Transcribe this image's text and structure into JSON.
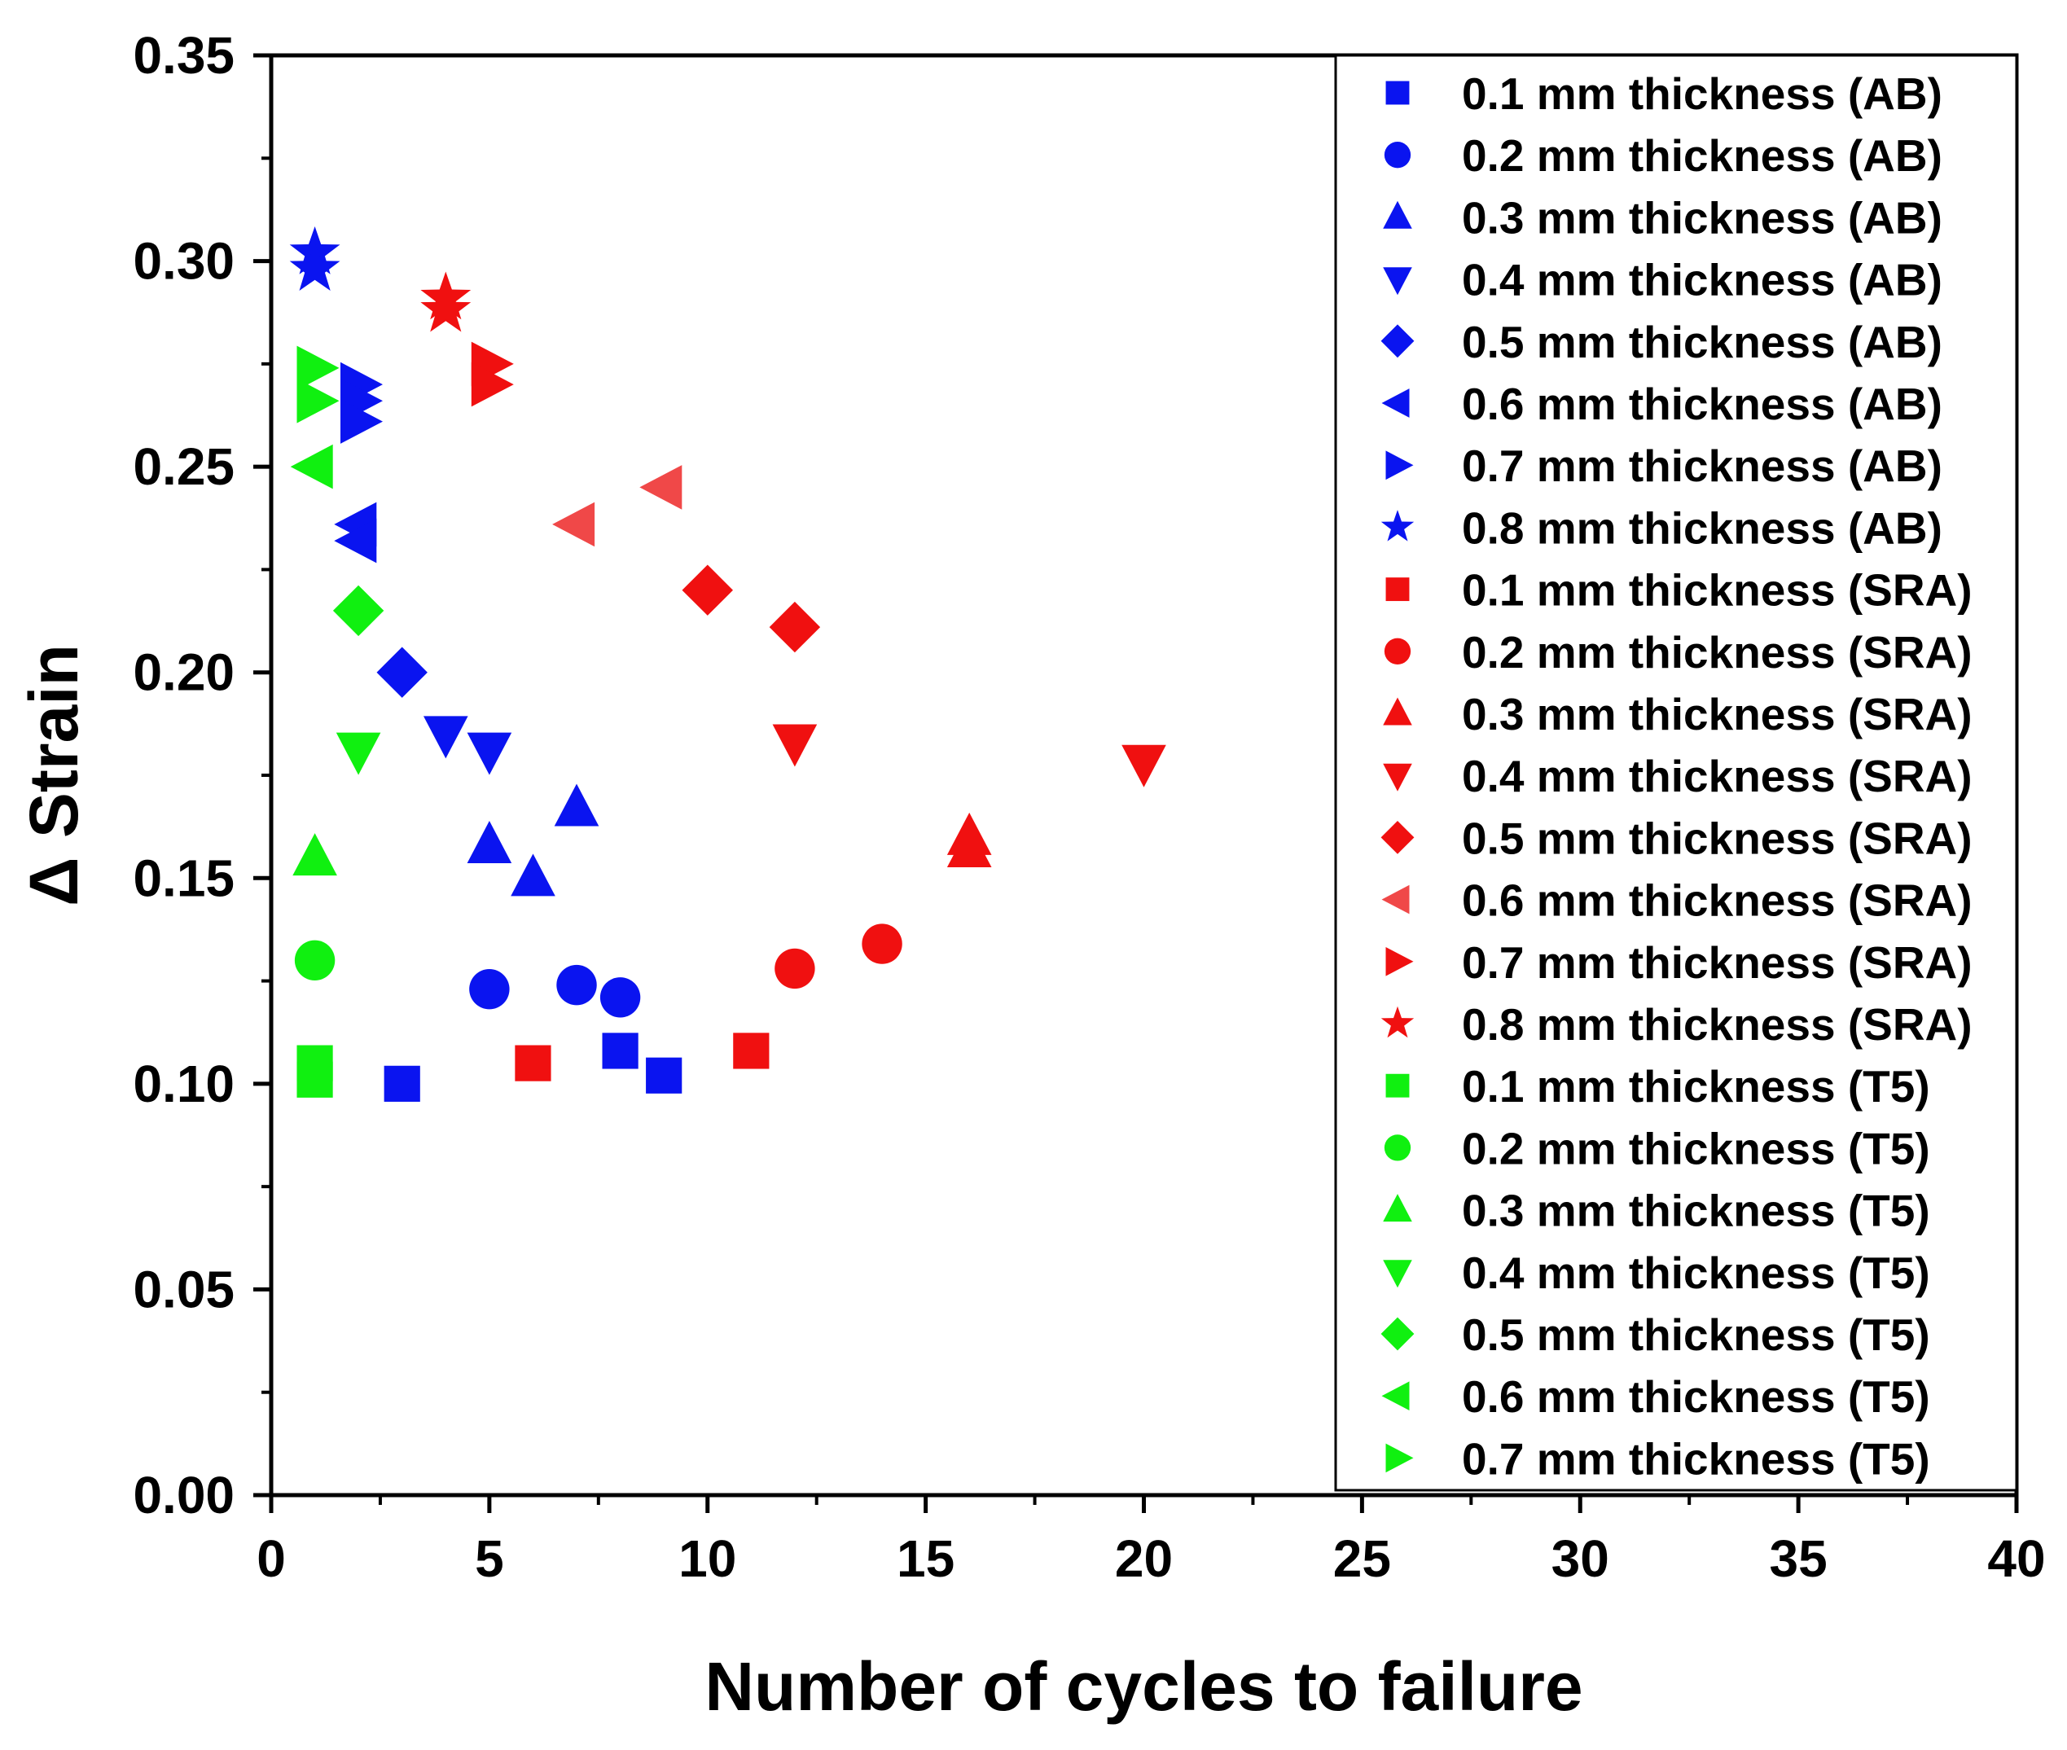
{
  "chart_data": {
    "type": "scatter",
    "xlabel": "Number of cycles to failure",
    "ylabel": "Δ Strain",
    "xlim": [
      0,
      40
    ],
    "ylim": [
      0,
      0.35
    ],
    "x_ticks": [
      "0",
      "5",
      "10",
      "15",
      "20",
      "25",
      "30",
      "35",
      "40"
    ],
    "y_ticks": [
      "0.00",
      "0.05",
      "0.10",
      "0.15",
      "0.20",
      "0.25",
      "0.30",
      "0.35"
    ],
    "legend_position": "top-right",
    "grid": false,
    "colors": {
      "AB": "#0a14f0",
      "SRA": "#f01010",
      "SRA_light": "#f04848",
      "T5": "#10f010"
    },
    "series": [
      {
        "name": "0.1 mm thickness (AB)",
        "group": "AB",
        "marker": "square",
        "color": "#0a14f0",
        "points": [
          [
            3,
            0.1
          ],
          [
            8,
            0.108
          ],
          [
            9,
            0.102
          ]
        ]
      },
      {
        "name": "0.2 mm thickness (AB)",
        "group": "AB",
        "marker": "circle",
        "color": "#0a14f0",
        "points": [
          [
            5,
            0.123
          ],
          [
            7,
            0.124
          ],
          [
            8,
            0.121
          ]
        ]
      },
      {
        "name": "0.3 mm thickness (AB)",
        "group": "AB",
        "marker": "triangle-up",
        "color": "#0a14f0",
        "points": [
          [
            5,
            0.158
          ],
          [
            6,
            0.15
          ],
          [
            7,
            0.167
          ]
        ]
      },
      {
        "name": "0.4 mm thickness (AB)",
        "group": "AB",
        "marker": "triangle-down",
        "color": "#0a14f0",
        "points": [
          [
            4,
            0.185
          ],
          [
            5,
            0.181
          ]
        ]
      },
      {
        "name": "0.5 mm thickness (AB)",
        "group": "AB",
        "marker": "diamond",
        "color": "#0a14f0",
        "points": [
          [
            3,
            0.2
          ]
        ]
      },
      {
        "name": "0.6 mm thickness (AB)",
        "group": "AB",
        "marker": "triangle-left",
        "color": "#0a14f0",
        "points": [
          [
            2,
            0.236
          ],
          [
            2,
            0.232
          ]
        ]
      },
      {
        "name": "0.7 mm thickness (AB)",
        "group": "AB",
        "marker": "triangle-right",
        "color": "#0a14f0",
        "points": [
          [
            2,
            0.27
          ],
          [
            2,
            0.266
          ],
          [
            2,
            0.261
          ]
        ]
      },
      {
        "name": "0.8 mm thickness (AB)",
        "group": "AB",
        "marker": "star",
        "color": "#0a14f0",
        "points": [
          [
            1,
            0.302
          ],
          [
            1,
            0.298
          ]
        ]
      },
      {
        "name": "0.1 mm thickness (SRA)",
        "group": "SRA",
        "marker": "square",
        "color": "#f01010",
        "points": [
          [
            6,
            0.105
          ],
          [
            11,
            0.108
          ]
        ]
      },
      {
        "name": "0.2 mm thickness (SRA)",
        "group": "SRA",
        "marker": "circle",
        "color": "#f01010",
        "points": [
          [
            12,
            0.128
          ],
          [
            14,
            0.134
          ]
        ]
      },
      {
        "name": "0.3 mm thickness (SRA)",
        "group": "SRA",
        "marker": "triangle-up",
        "color": "#f01010",
        "points": [
          [
            16,
            0.16
          ],
          [
            16,
            0.157
          ]
        ]
      },
      {
        "name": "0.4 mm thickness (SRA)",
        "group": "SRA",
        "marker": "triangle-down",
        "color": "#f01010",
        "points": [
          [
            12,
            0.183
          ],
          [
            20,
            0.178
          ]
        ]
      },
      {
        "name": "0.5 mm thickness (SRA)",
        "group": "SRA",
        "marker": "diamond",
        "color": "#f01010",
        "points": [
          [
            10,
            0.22
          ],
          [
            12,
            0.211
          ]
        ]
      },
      {
        "name": "0.6 mm thickness (SRA)",
        "group": "SRA",
        "marker": "triangle-left",
        "color": "#f04848",
        "points": [
          [
            7,
            0.236
          ],
          [
            9,
            0.245
          ]
        ]
      },
      {
        "name": "0.7 mm thickness (SRA)",
        "group": "SRA",
        "marker": "triangle-right",
        "color": "#f01010",
        "points": [
          [
            5,
            0.275
          ],
          [
            5,
            0.27
          ]
        ]
      },
      {
        "name": "0.8 mm thickness (SRA)",
        "group": "SRA",
        "marker": "star",
        "color": "#f01010",
        "points": [
          [
            4,
            0.291
          ],
          [
            4,
            0.288
          ]
        ]
      },
      {
        "name": "0.1 mm thickness (T5)",
        "group": "T5",
        "marker": "square",
        "color": "#10f010",
        "points": [
          [
            1,
            0.105
          ],
          [
            1,
            0.101
          ]
        ]
      },
      {
        "name": "0.2 mm thickness (T5)",
        "group": "T5",
        "marker": "circle",
        "color": "#10f010",
        "points": [
          [
            1,
            0.13
          ]
        ]
      },
      {
        "name": "0.3 mm thickness (T5)",
        "group": "T5",
        "marker": "triangle-up",
        "color": "#10f010",
        "points": [
          [
            1,
            0.155
          ]
        ]
      },
      {
        "name": "0.4 mm thickness (T5)",
        "group": "T5",
        "marker": "triangle-down",
        "color": "#10f010",
        "points": [
          [
            2,
            0.181
          ]
        ]
      },
      {
        "name": "0.5 mm thickness (T5)",
        "group": "T5",
        "marker": "diamond",
        "color": "#10f010",
        "points": [
          [
            2,
            0.215
          ]
        ]
      },
      {
        "name": "0.6 mm thickness (T5)",
        "group": "T5",
        "marker": "triangle-left",
        "color": "#10f010",
        "points": [
          [
            1,
            0.25
          ]
        ]
      },
      {
        "name": "0.7 mm thickness (T5)",
        "group": "T5",
        "marker": "triangle-right",
        "color": "#10f010",
        "points": [
          [
            1,
            0.274
          ],
          [
            1,
            0.266
          ]
        ]
      }
    ]
  }
}
